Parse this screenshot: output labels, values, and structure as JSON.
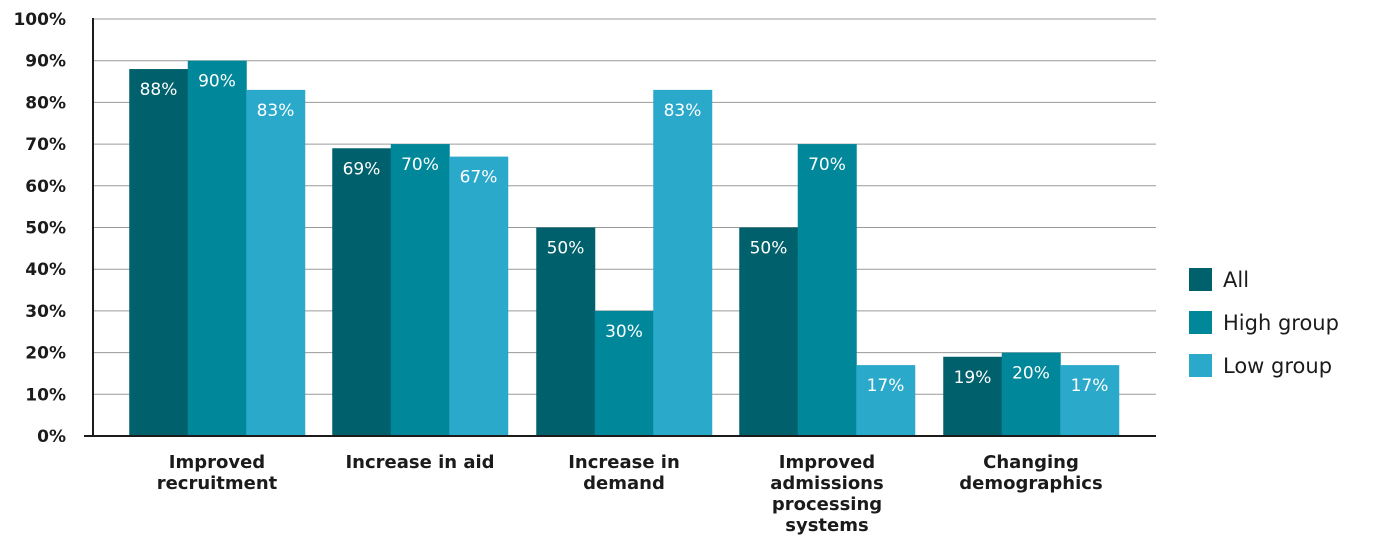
{
  "chart_data": {
    "type": "bar",
    "categories": [
      [
        "Improved",
        "recruitment"
      ],
      [
        "Increase in aid"
      ],
      [
        "Increase in",
        "demand"
      ],
      [
        "Improved",
        "admissions",
        "processing",
        "systems"
      ],
      [
        "Changing",
        "demographics"
      ]
    ],
    "series": [
      {
        "name": "All",
        "color": "#00606b",
        "values": [
          88,
          69,
          50,
          50,
          19
        ],
        "labels": [
          "88%",
          "69%",
          "50%",
          "50%",
          "19%"
        ]
      },
      {
        "name": "High group",
        "color": "#00889a",
        "values": [
          90,
          70,
          30,
          70,
          20
        ],
        "labels": [
          "90%",
          "70%",
          "30%",
          "70%",
          "20%"
        ]
      },
      {
        "name": "Low group",
        "color": "#2aa9cb",
        "values": [
          83,
          67,
          83,
          17,
          17
        ],
        "labels": [
          "83%",
          "67%",
          "83%",
          "17%",
          "17%"
        ]
      }
    ],
    "y_ticks": [
      "0%",
      "10%",
      "20%",
      "30%",
      "40%",
      "50%",
      "60%",
      "70%",
      "80%",
      "90%",
      "100%"
    ],
    "ylim": [
      0,
      100
    ],
    "grid": true,
    "legend_position": "right"
  }
}
